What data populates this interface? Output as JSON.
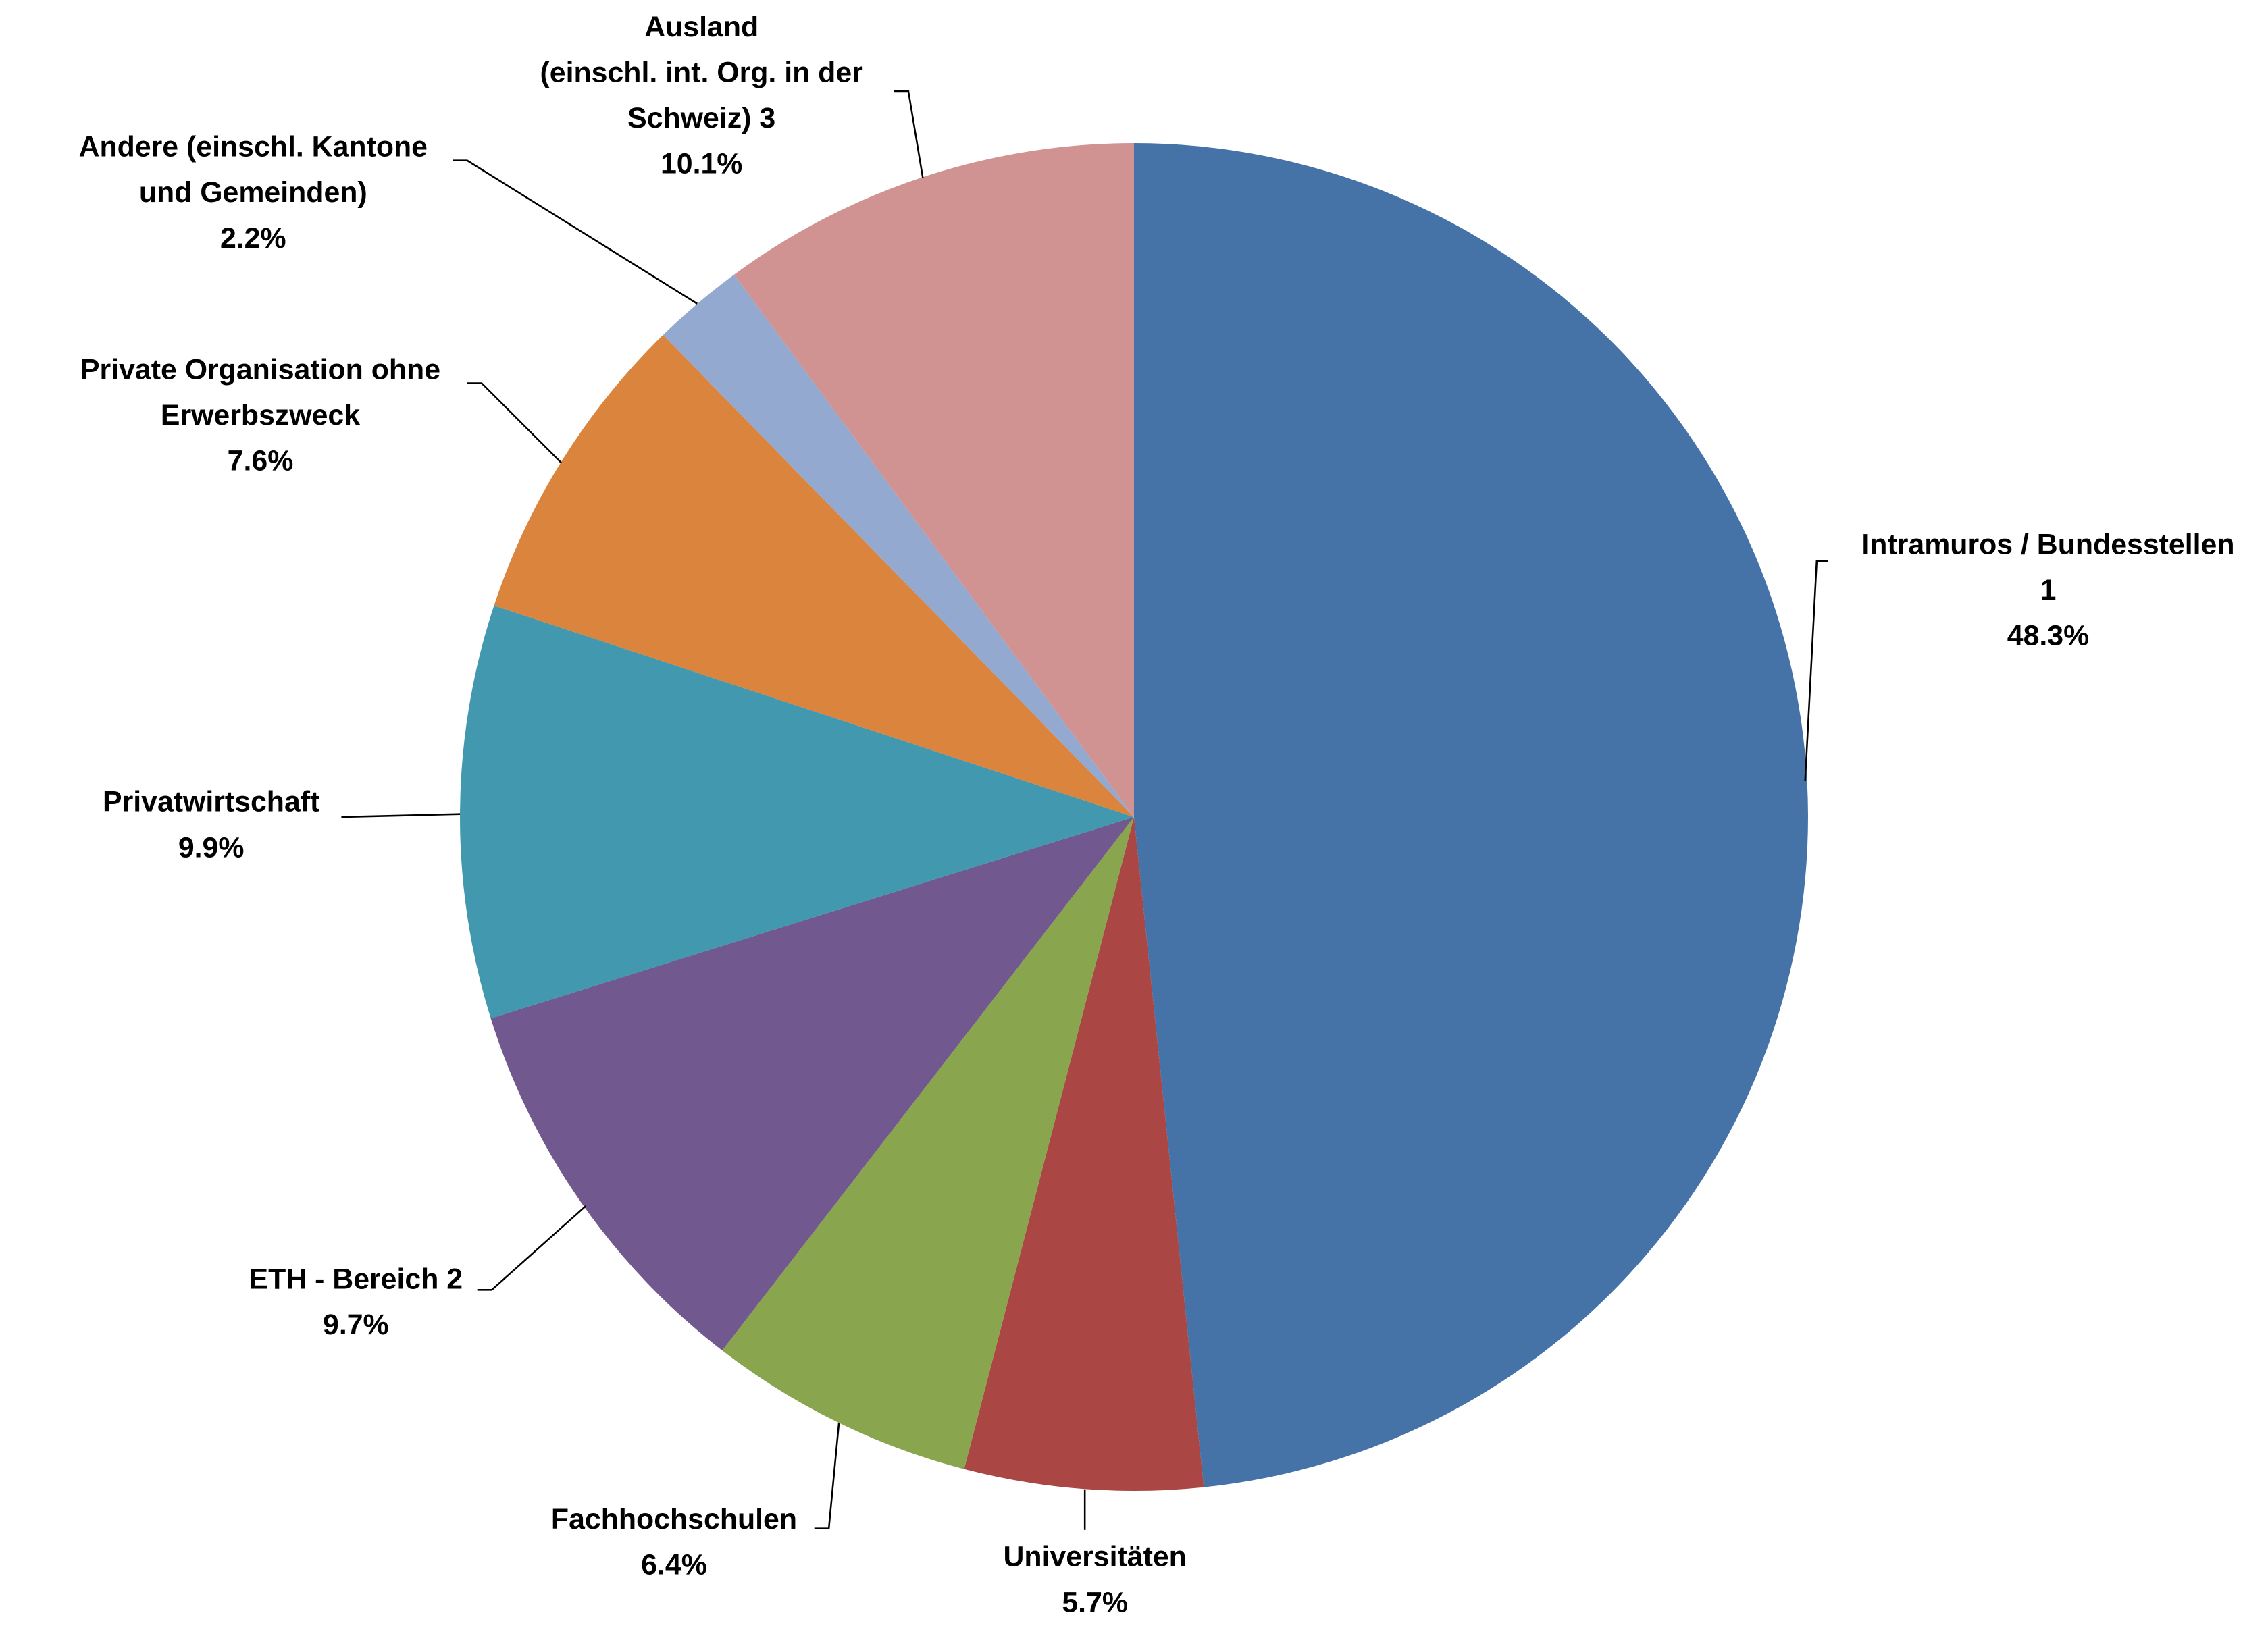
{
  "chart_data": {
    "type": "pie",
    "categories": [
      "Intramuros / Bundesstellen 1",
      "Universitäten",
      "Fachhochschulen",
      "ETH - Bereich 2",
      "Privatwirtschaft",
      "Private Organisation ohne Erwerbszweck",
      "Andere (einschl. Kantone und Gemeinden)",
      "Ausland (einschl. int. Org. in der Schweiz) 3"
    ],
    "values": [
      48.3,
      5.7,
      6.4,
      9.7,
      9.9,
      7.6,
      2.2,
      10.1
    ],
    "value_labels": [
      "48.3%",
      "5.7%",
      "6.4%",
      "9.7%",
      "9.9%",
      "7.6%",
      "2.2%",
      "10.1%"
    ],
    "colors": [
      "#4572a7",
      "#aa4643",
      "#89a54e",
      "#71588f",
      "#4198af",
      "#db843d",
      "#93a9cf",
      "#d19392"
    ]
  }
}
